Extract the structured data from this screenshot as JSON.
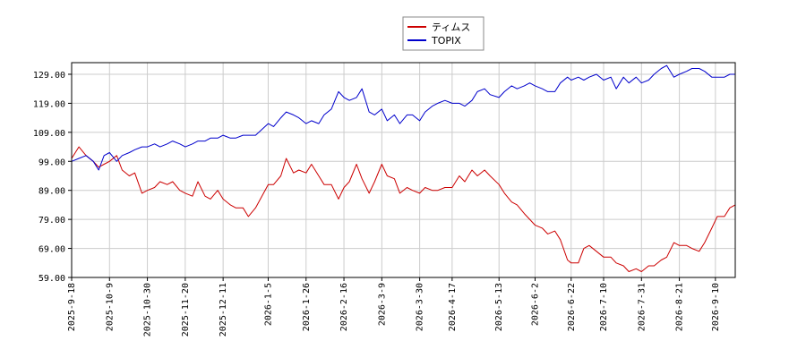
{
  "chart_data": {
    "type": "line",
    "title": "",
    "xlabel": "",
    "ylabel": "",
    "ylim": [
      59.0,
      133.0
    ],
    "xlim": [
      "2025-09-18",
      "2026-09-21"
    ],
    "grid": true,
    "legend_position": "top-center",
    "yticks": [
      "59.00",
      "69.00",
      "79.00",
      "89.00",
      "99.00",
      "109.00",
      "119.00",
      "129.00"
    ],
    "xticks": [
      "2025-9-18",
      "2025-10-9",
      "2025-10-30",
      "2025-11-20",
      "2025-12-11",
      "2026-1-5",
      "2026-1-26",
      "2026-2-16",
      "2026-3-9",
      "2026-3-30",
      "2026-4-17",
      "2026-5-13",
      "2026-6-2",
      "2026-6-22",
      "2026-7-10",
      "2026-7-31",
      "2026-8-21",
      "2026-9-10"
    ],
    "xtick_dates": [
      "2025-09-18",
      "2025-10-09",
      "2025-10-30",
      "2025-11-20",
      "2025-12-11",
      "2026-01-05",
      "2026-01-26",
      "2026-02-16",
      "2026-03-09",
      "2026-03-30",
      "2026-04-17",
      "2026-05-13",
      "2026-06-02",
      "2026-06-22",
      "2026-07-10",
      "2026-07-31",
      "2026-08-21",
      "2026-09-10"
    ],
    "series": [
      {
        "name": "ティムス",
        "color": "#cc0000",
        "points": [
          [
            "2025-09-18",
            100
          ],
          [
            "2025-09-22",
            104
          ],
          [
            "2025-09-26",
            101
          ],
          [
            "2025-09-30",
            99
          ],
          [
            "2025-10-03",
            97
          ],
          [
            "2025-10-06",
            98
          ],
          [
            "2025-10-09",
            99
          ],
          [
            "2025-10-13",
            101
          ],
          [
            "2025-10-16",
            96
          ],
          [
            "2025-10-20",
            94
          ],
          [
            "2025-10-23",
            95
          ],
          [
            "2025-10-27",
            88
          ],
          [
            "2025-10-30",
            89
          ],
          [
            "2025-11-03",
            90
          ],
          [
            "2025-11-06",
            92
          ],
          [
            "2025-11-10",
            91
          ],
          [
            "2025-11-13",
            92
          ],
          [
            "2025-11-17",
            89
          ],
          [
            "2025-11-20",
            88
          ],
          [
            "2025-11-24",
            87
          ],
          [
            "2025-11-27",
            92
          ],
          [
            "2025-12-01",
            87
          ],
          [
            "2025-12-04",
            86
          ],
          [
            "2025-12-08",
            89
          ],
          [
            "2025-12-11",
            86
          ],
          [
            "2025-12-15",
            84
          ],
          [
            "2025-12-18",
            83
          ],
          [
            "2025-12-22",
            83
          ],
          [
            "2025-12-25",
            80
          ],
          [
            "2025-12-29",
            83
          ],
          [
            "2026-01-05",
            91
          ],
          [
            "2026-01-08",
            91
          ],
          [
            "2026-01-12",
            94
          ],
          [
            "2026-01-15",
            100
          ],
          [
            "2026-01-19",
            95
          ],
          [
            "2026-01-22",
            96
          ],
          [
            "2026-01-26",
            95
          ],
          [
            "2026-01-29",
            98
          ],
          [
            "2026-02-02",
            94
          ],
          [
            "2026-02-05",
            91
          ],
          [
            "2026-02-09",
            91
          ],
          [
            "2026-02-13",
            86
          ],
          [
            "2026-02-16",
            90
          ],
          [
            "2026-02-19",
            92
          ],
          [
            "2026-02-23",
            98
          ],
          [
            "2026-02-26",
            93
          ],
          [
            "2026-03-02",
            88
          ],
          [
            "2026-03-05",
            92
          ],
          [
            "2026-03-09",
            98
          ],
          [
            "2026-03-12",
            94
          ],
          [
            "2026-03-16",
            93
          ],
          [
            "2026-03-19",
            88
          ],
          [
            "2026-03-23",
            90
          ],
          [
            "2026-03-26",
            89
          ],
          [
            "2026-03-30",
            88
          ],
          [
            "2026-04-02",
            90
          ],
          [
            "2026-04-06",
            89
          ],
          [
            "2026-04-09",
            89
          ],
          [
            "2026-04-13",
            90
          ],
          [
            "2026-04-17",
            90
          ],
          [
            "2026-04-21",
            94
          ],
          [
            "2026-04-24",
            92
          ],
          [
            "2026-04-28",
            96
          ],
          [
            "2026-05-01",
            94
          ],
          [
            "2026-05-05",
            96
          ],
          [
            "2026-05-08",
            94
          ],
          [
            "2026-05-13",
            91
          ],
          [
            "2026-05-16",
            88
          ],
          [
            "2026-05-20",
            85
          ],
          [
            "2026-05-23",
            84
          ],
          [
            "2026-05-27",
            81
          ],
          [
            "2026-05-30",
            79
          ],
          [
            "2026-06-02",
            77
          ],
          [
            "2026-06-06",
            76
          ],
          [
            "2026-06-09",
            74
          ],
          [
            "2026-06-13",
            75
          ],
          [
            "2026-06-16",
            72
          ],
          [
            "2026-06-20",
            65
          ],
          [
            "2026-06-22",
            64
          ],
          [
            "2026-06-26",
            64
          ],
          [
            "2026-06-29",
            69
          ],
          [
            "2026-07-02",
            70
          ],
          [
            "2026-07-06",
            68
          ],
          [
            "2026-07-10",
            66
          ],
          [
            "2026-07-14",
            66
          ],
          [
            "2026-07-17",
            64
          ],
          [
            "2026-07-21",
            63
          ],
          [
            "2026-07-24",
            61
          ],
          [
            "2026-07-28",
            62
          ],
          [
            "2026-07-31",
            61
          ],
          [
            "2026-08-04",
            63
          ],
          [
            "2026-08-07",
            63
          ],
          [
            "2026-08-11",
            65
          ],
          [
            "2026-08-14",
            66
          ],
          [
            "2026-08-18",
            71
          ],
          [
            "2026-08-21",
            70
          ],
          [
            "2026-08-25",
            70
          ],
          [
            "2026-08-28",
            69
          ],
          [
            "2026-09-01",
            68
          ],
          [
            "2026-09-04",
            71
          ],
          [
            "2026-09-08",
            76
          ],
          [
            "2026-09-11",
            80
          ],
          [
            "2026-09-15",
            80
          ],
          [
            "2026-09-18",
            83
          ],
          [
            "2026-09-21",
            84
          ]
        ]
      },
      {
        "name": "TOPIX",
        "color": "#0000cc",
        "points": [
          [
            "2025-09-18",
            99
          ],
          [
            "2025-09-22",
            100
          ],
          [
            "2025-09-26",
            101
          ],
          [
            "2025-09-30",
            99
          ],
          [
            "2025-10-03",
            96
          ],
          [
            "2025-10-06",
            101
          ],
          [
            "2025-10-09",
            102
          ],
          [
            "2025-10-13",
            99
          ],
          [
            "2025-10-16",
            101
          ],
          [
            "2025-10-20",
            102
          ],
          [
            "2025-10-23",
            103
          ],
          [
            "2025-10-27",
            104
          ],
          [
            "2025-10-30",
            104
          ],
          [
            "2025-11-03",
            105
          ],
          [
            "2025-11-06",
            104
          ],
          [
            "2025-11-10",
            105
          ],
          [
            "2025-11-13",
            106
          ],
          [
            "2025-11-17",
            105
          ],
          [
            "2025-11-20",
            104
          ],
          [
            "2025-11-24",
            105
          ],
          [
            "2025-11-27",
            106
          ],
          [
            "2025-12-01",
            106
          ],
          [
            "2025-12-04",
            107
          ],
          [
            "2025-12-08",
            107
          ],
          [
            "2025-12-11",
            108
          ],
          [
            "2025-12-15",
            107
          ],
          [
            "2025-12-18",
            107
          ],
          [
            "2025-12-22",
            108
          ],
          [
            "2025-12-25",
            108
          ],
          [
            "2025-12-29",
            108
          ],
          [
            "2026-01-05",
            112
          ],
          [
            "2026-01-08",
            111
          ],
          [
            "2026-01-12",
            114
          ],
          [
            "2026-01-15",
            116
          ],
          [
            "2026-01-19",
            115
          ],
          [
            "2026-01-22",
            114
          ],
          [
            "2026-01-26",
            112
          ],
          [
            "2026-01-29",
            113
          ],
          [
            "2026-02-02",
            112
          ],
          [
            "2026-02-05",
            115
          ],
          [
            "2026-02-09",
            117
          ],
          [
            "2026-02-13",
            123
          ],
          [
            "2026-02-16",
            121
          ],
          [
            "2026-02-19",
            120
          ],
          [
            "2026-02-23",
            121
          ],
          [
            "2026-02-26",
            124
          ],
          [
            "2026-03-02",
            116
          ],
          [
            "2026-03-05",
            115
          ],
          [
            "2026-03-09",
            117
          ],
          [
            "2026-03-12",
            113
          ],
          [
            "2026-03-16",
            115
          ],
          [
            "2026-03-19",
            112
          ],
          [
            "2026-03-23",
            115
          ],
          [
            "2026-03-26",
            115
          ],
          [
            "2026-03-30",
            113
          ],
          [
            "2026-04-02",
            116
          ],
          [
            "2026-04-06",
            118
          ],
          [
            "2026-04-09",
            119
          ],
          [
            "2026-04-13",
            120
          ],
          [
            "2026-04-17",
            119
          ],
          [
            "2026-04-21",
            119
          ],
          [
            "2026-04-24",
            118
          ],
          [
            "2026-04-28",
            120
          ],
          [
            "2026-05-01",
            123
          ],
          [
            "2026-05-05",
            124
          ],
          [
            "2026-05-08",
            122
          ],
          [
            "2026-05-13",
            121
          ],
          [
            "2026-05-16",
            123
          ],
          [
            "2026-05-20",
            125
          ],
          [
            "2026-05-23",
            124
          ],
          [
            "2026-05-27",
            125
          ],
          [
            "2026-05-30",
            126
          ],
          [
            "2026-06-02",
            125
          ],
          [
            "2026-06-06",
            124
          ],
          [
            "2026-06-09",
            123
          ],
          [
            "2026-06-13",
            123
          ],
          [
            "2026-06-16",
            126
          ],
          [
            "2026-06-20",
            128
          ],
          [
            "2026-06-22",
            127
          ],
          [
            "2026-06-26",
            128
          ],
          [
            "2026-06-29",
            127
          ],
          [
            "2026-07-02",
            128
          ],
          [
            "2026-07-06",
            129
          ],
          [
            "2026-07-10",
            127
          ],
          [
            "2026-07-14",
            128
          ],
          [
            "2026-07-17",
            124
          ],
          [
            "2026-07-21",
            128
          ],
          [
            "2026-07-24",
            126
          ],
          [
            "2026-07-28",
            128
          ],
          [
            "2026-07-31",
            126
          ],
          [
            "2026-08-04",
            127
          ],
          [
            "2026-08-07",
            129
          ],
          [
            "2026-08-11",
            131
          ],
          [
            "2026-08-14",
            132
          ],
          [
            "2026-08-18",
            128
          ],
          [
            "2026-08-21",
            129
          ],
          [
            "2026-08-25",
            130
          ],
          [
            "2026-08-28",
            131
          ],
          [
            "2026-09-01",
            131
          ],
          [
            "2026-09-04",
            130
          ],
          [
            "2026-09-08",
            128
          ],
          [
            "2026-09-11",
            128
          ],
          [
            "2026-09-15",
            128
          ],
          [
            "2026-09-18",
            129
          ],
          [
            "2026-09-21",
            129
          ]
        ]
      }
    ]
  }
}
